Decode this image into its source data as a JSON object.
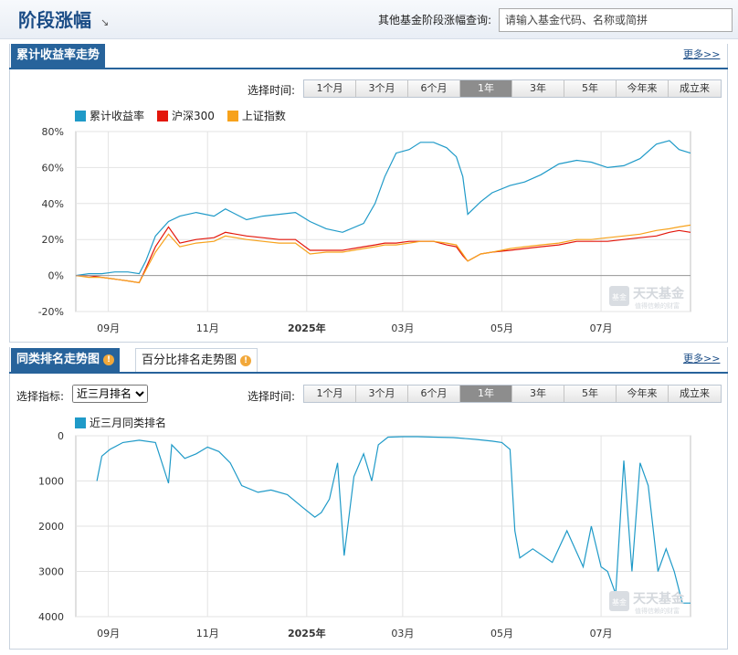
{
  "header": {
    "title": "阶段涨幅",
    "title_arrow": "↘",
    "search_label": "其他基金阶段涨幅查询:",
    "search_placeholder": "请输入基金代码、名称或简拼"
  },
  "colors": {
    "brand_blue": "#27639b",
    "series_fund": "#1f9ac8",
    "series_hs300": "#e3160b",
    "series_sz": "#f7a21b"
  },
  "icons": {
    "badge": "info-badge-icon",
    "watermark": "tiantian-fund-logo"
  },
  "section1": {
    "tab_label": "累计收益率走势",
    "more": "更多>>",
    "period_label": "选择时间:",
    "periods": [
      "1个月",
      "3个月",
      "6个月",
      "1年",
      "3年",
      "5年",
      "今年来",
      "成立来"
    ],
    "active_period": "1年",
    "legend": [
      "累计收益率",
      "沪深300",
      "上证指数"
    ],
    "watermark": {
      "main": "天天基金",
      "sub": "值得信赖的财富",
      "seal": "基金"
    }
  },
  "section2": {
    "tab_label": "同类排名走势图",
    "tab2_label": "百分比排名走势图",
    "more": "更多>>",
    "indicator_label": "选择指标:",
    "indicator_value": "近三月排名",
    "period_label": "选择时间:",
    "periods": [
      "1个月",
      "3个月",
      "6个月",
      "1年",
      "3年",
      "5年",
      "今年来",
      "成立来"
    ],
    "active_period": "1年",
    "legend": [
      "近三月同类排名"
    ],
    "watermark": {
      "main": "天天基金",
      "sub": "值得信赖的财富",
      "seal": "基金"
    }
  },
  "chart_data": [
    {
      "type": "line",
      "title": "累计收益率走势",
      "ylim": [
        -20,
        80
      ],
      "y_ticks": [
        "80%",
        "60%",
        "40%",
        "20%",
        "0%",
        "-20%"
      ],
      "x_tick_labels": [
        "09月",
        "11月",
        "2025年",
        "03月",
        "05月",
        "07月"
      ],
      "grid": true,
      "legend_position": "top-left",
      "x": [
        "2024-08-12",
        "2024-08-20",
        "2024-08-28",
        "2024-09-05",
        "2024-09-13",
        "2024-09-20",
        "2024-09-24",
        "2024-09-30",
        "2024-10-08",
        "2024-10-15",
        "2024-10-25",
        "2024-11-05",
        "2024-11-12",
        "2024-11-25",
        "2024-12-05",
        "2024-12-15",
        "2024-12-25",
        "2025-01-03",
        "2025-01-13",
        "2025-01-23",
        "2025-02-05",
        "2025-02-12",
        "2025-02-18",
        "2025-02-25",
        "2025-03-05",
        "2025-03-12",
        "2025-03-20",
        "2025-03-28",
        "2025-04-03",
        "2025-04-07",
        "2025-04-10",
        "2025-04-18",
        "2025-04-25",
        "2025-05-06",
        "2025-05-15",
        "2025-05-25",
        "2025-06-05",
        "2025-06-16",
        "2025-06-25",
        "2025-07-05",
        "2025-07-15",
        "2025-07-25",
        "2025-08-04",
        "2025-08-12",
        "2025-08-18",
        "2025-08-25"
      ],
      "series": [
        {
          "name": "累计收益率",
          "values": [
            0,
            1,
            1,
            2,
            2,
            1,
            8,
            22,
            30,
            33,
            35,
            33,
            37,
            31,
            33,
            34,
            35,
            30,
            26,
            24,
            29,
            40,
            55,
            68,
            70,
            74,
            74,
            71,
            66,
            55,
            34,
            41,
            46,
            50,
            52,
            56,
            62,
            64,
            63,
            60,
            61,
            65,
            73,
            75,
            70,
            68
          ]
        },
        {
          "name": "沪深300",
          "values": [
            0,
            0,
            -1,
            -2,
            -3,
            -4,
            4,
            16,
            27,
            18,
            20,
            21,
            24,
            22,
            21,
            20,
            20,
            14,
            14,
            14,
            16,
            17,
            18,
            18,
            19,
            19,
            19,
            17,
            16,
            11,
            8,
            12,
            13,
            14,
            15,
            16,
            17,
            19,
            19,
            19,
            20,
            21,
            22,
            24,
            25,
            24
          ]
        },
        {
          "name": "上证指数",
          "values": [
            0,
            -1,
            -1,
            -2,
            -3,
            -4,
            3,
            13,
            23,
            16,
            18,
            19,
            22,
            20,
            19,
            18,
            18,
            12,
            13,
            13,
            15,
            16,
            17,
            17,
            18,
            19,
            19,
            18,
            17,
            12,
            8,
            12,
            13,
            15,
            16,
            17,
            18,
            20,
            20,
            21,
            22,
            23,
            25,
            26,
            27,
            28
          ]
        }
      ]
    },
    {
      "type": "line",
      "title": "同类排名走势图",
      "ylim": [
        0,
        4000
      ],
      "y_inverted": true,
      "y_ticks": [
        "0",
        "1000",
        "2000",
        "3000",
        "4000"
      ],
      "x_tick_labels": [
        "09月",
        "11月",
        "2025年",
        "03月",
        "05月",
        "07月"
      ],
      "grid": true,
      "legend_position": "top-left",
      "x": [
        "2024-08-25",
        "2024-08-28",
        "2024-09-02",
        "2024-09-10",
        "2024-09-20",
        "2024-09-30",
        "2024-10-08",
        "2024-10-10",
        "2024-10-14",
        "2024-10-18",
        "2024-10-25",
        "2024-11-01",
        "2024-11-08",
        "2024-11-15",
        "2024-11-22",
        "2024-12-02",
        "2024-12-10",
        "2024-12-20",
        "2024-12-30",
        "2025-01-06",
        "2025-01-10",
        "2025-01-15",
        "2025-01-20",
        "2025-01-24",
        "2025-01-30",
        "2025-02-05",
        "2025-02-10",
        "2025-02-14",
        "2025-02-20",
        "2025-03-01",
        "2025-03-10",
        "2025-03-20",
        "2025-04-01",
        "2025-04-15",
        "2025-04-25",
        "2025-05-01",
        "2025-05-06",
        "2025-05-09",
        "2025-05-12",
        "2025-05-20",
        "2025-06-01",
        "2025-06-10",
        "2025-06-20",
        "2025-06-25",
        "2025-07-01",
        "2025-07-05",
        "2025-07-10",
        "2025-07-15",
        "2025-07-20",
        "2025-07-25",
        "2025-07-30",
        "2025-08-05",
        "2025-08-10",
        "2025-08-15",
        "2025-08-20",
        "2025-08-25"
      ],
      "series": [
        {
          "name": "近三月同类排名",
          "values": [
            1000,
            450,
            300,
            150,
            100,
            150,
            1050,
            200,
            350,
            500,
            400,
            250,
            350,
            600,
            1100,
            1250,
            1200,
            1300,
            1600,
            1800,
            1700,
            1400,
            600,
            2650,
            900,
            400,
            1000,
            200,
            30,
            20,
            20,
            30,
            40,
            80,
            120,
            150,
            300,
            2100,
            2700,
            2500,
            2800,
            2100,
            2900,
            2000,
            2900,
            3000,
            3500,
            550,
            3000,
            600,
            1100,
            3000,
            2500,
            3000,
            3700,
            3700
          ]
        }
      ]
    }
  ]
}
